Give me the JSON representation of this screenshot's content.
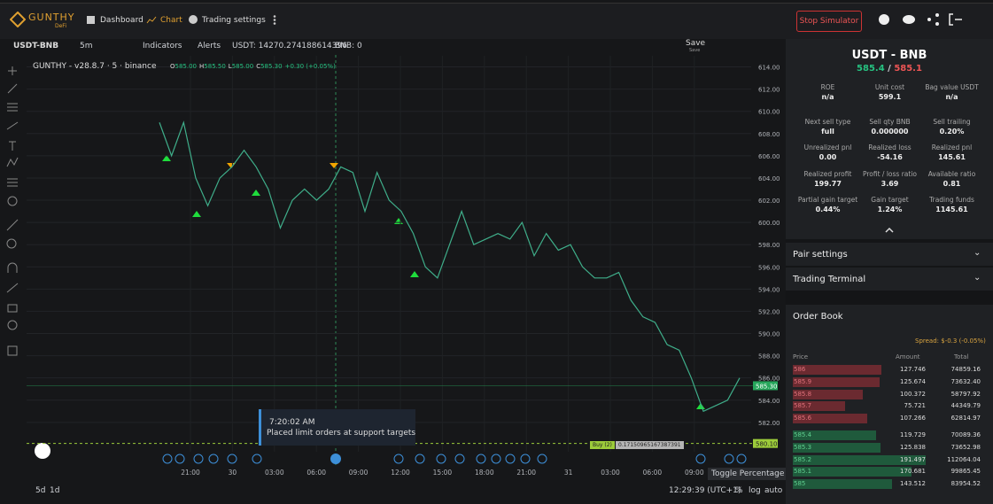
{
  "header": {
    "logo": "GUNTHY",
    "logo_sub": "DeFi",
    "nav": [
      "Dashboard",
      "Chart",
      "Trading settings"
    ],
    "stop_button": "Stop Simulator"
  },
  "toolbar": {
    "symbol": "USDT-BNB",
    "interval": "5m",
    "indicators": "Indicators",
    "alerts": "Alerts",
    "usdt_balance": "USDT: 14270.274188614396",
    "bnb_balance": "BNB: 0",
    "save": "Save",
    "save_sub": "Save"
  },
  "chart": {
    "legend": "GUNTHY - v28.8.7 · 5 · binance",
    "ohlc": [
      {
        "key": "O",
        "value": "585.00"
      },
      {
        "key": "H",
        "value": "585.50"
      },
      {
        "key": "L",
        "value": "585.00"
      },
      {
        "key": "C",
        "value": "585.30"
      }
    ],
    "change": "+0.30 (+0.05%)",
    "ylim": [
      578,
      615
    ],
    "yticks": [
      {
        "value": 614,
        "label": "614.00"
      },
      {
        "value": 612,
        "label": "612.00"
      },
      {
        "value": 610,
        "label": "610.00"
      },
      {
        "value": 608,
        "label": "608.00"
      },
      {
        "value": 606,
        "label": "606.00"
      },
      {
        "value": 604,
        "label": "604.00"
      },
      {
        "value": 602,
        "label": "602.00"
      },
      {
        "value": 600,
        "label": "600.00"
      },
      {
        "value": 598,
        "label": "598.00"
      },
      {
        "value": 596,
        "label": "596.00"
      },
      {
        "value": 594,
        "label": "594.00"
      },
      {
        "value": 592,
        "label": "592.00"
      },
      {
        "value": 590,
        "label": "590.00"
      },
      {
        "value": 588,
        "label": "588.00"
      },
      {
        "value": 586,
        "label": "586.00"
      },
      {
        "value": 584,
        "label": "584.00"
      },
      {
        "value": 582,
        "label": "582.00"
      }
    ],
    "price_tags": [
      {
        "value": 585.3,
        "label": "585.30"
      },
      {
        "value": 580.1,
        "label": "580.10"
      }
    ],
    "xticks": [
      "21:00",
      "30",
      "03:00",
      "06:00",
      "09:00",
      "12:00",
      "15:00",
      "18:00",
      "21:00",
      "31",
      "03:00",
      "06:00",
      "09:00"
    ],
    "closes": [
      609,
      606,
      609,
      604,
      601.5,
      604,
      605,
      606.5,
      605,
      603,
      599.5,
      602,
      603,
      602,
      603,
      605,
      604.5,
      601,
      604.5,
      602,
      601,
      599,
      596,
      595,
      598,
      601,
      598,
      598.5,
      599,
      598.5,
      600,
      597,
      599,
      597.5,
      598,
      596,
      595,
      595,
      595.5,
      593,
      591.5,
      591,
      589,
      588.5,
      586,
      583,
      583.5,
      584,
      586
    ],
    "tooltip": {
      "time": "7:20:02 AM",
      "text": "Placed limit orders at support targets"
    },
    "buy_label": {
      "side": "Buy (2)",
      "amount": "0.17150965167387391"
    },
    "bottom": {
      "ranges": [
        "5d",
        "1d"
      ],
      "clock": "12:29:39 (UTC+1)",
      "options": [
        "%",
        "log",
        "auto"
      ],
      "hint": "Toggle Percentage"
    }
  },
  "panel": {
    "pair": "USDT - BNB",
    "ask": "585.4",
    "separator": "/",
    "bid": "585.1",
    "stats": [
      {
        "label": "ROE",
        "value": "n/a"
      },
      {
        "label": "Unit cost",
        "value": "599.1"
      },
      {
        "label": "Bag value USDT",
        "value": "n/a"
      },
      {
        "label": "Next sell type",
        "value": "full"
      },
      {
        "label": "Sell qty BNB",
        "value": "0.000000"
      },
      {
        "label": "Sell trailing",
        "value": "0.20%"
      },
      {
        "label": "Unrealized pnl",
        "value": "0.00"
      },
      {
        "label": "Realized loss",
        "value": "-54.16"
      },
      {
        "label": "Realized pnl",
        "value": "145.61"
      },
      {
        "label": "Realized profit",
        "value": "199.77"
      },
      {
        "label": "Profit / loss ratio",
        "value": "3.69"
      },
      {
        "label": "Available ratio",
        "value": "0.81"
      },
      {
        "label": "Partial gain target",
        "value": "0.44%"
      },
      {
        "label": "Gain target",
        "value": "1.24%"
      },
      {
        "label": "Trading funds",
        "value": "1145.61"
      }
    ],
    "sections": [
      "Pair settings",
      "Trading Terminal",
      "Order Book"
    ],
    "spread": "Spread: $-0.3 (-0.05%)",
    "columns": [
      "Price",
      "Amount",
      "Total"
    ],
    "asks": [
      {
        "price": "586",
        "amount": 127.746,
        "total": "74859.16"
      },
      {
        "price": "585.9",
        "amount": 125.674,
        "total": "73632.40"
      },
      {
        "price": "585.8",
        "amount": 100.372,
        "total": "58797.92"
      },
      {
        "price": "585.7",
        "amount": 75.721,
        "total": "44349.79"
      },
      {
        "price": "585.6",
        "amount": 107.266,
        "total": "62814.97"
      }
    ],
    "bids": [
      {
        "price": "585.4",
        "amount": 119.729,
        "total": "70089.36"
      },
      {
        "price": "585.3",
        "amount": 125.838,
        "total": "73652.98"
      },
      {
        "price": "585.2",
        "amount": 191.497,
        "total": "112064.04"
      },
      {
        "price": "585.1",
        "amount": 170.681,
        "total": "99865.45"
      },
      {
        "price": "585",
        "amount": 143.512,
        "total": "83954.52"
      }
    ]
  }
}
